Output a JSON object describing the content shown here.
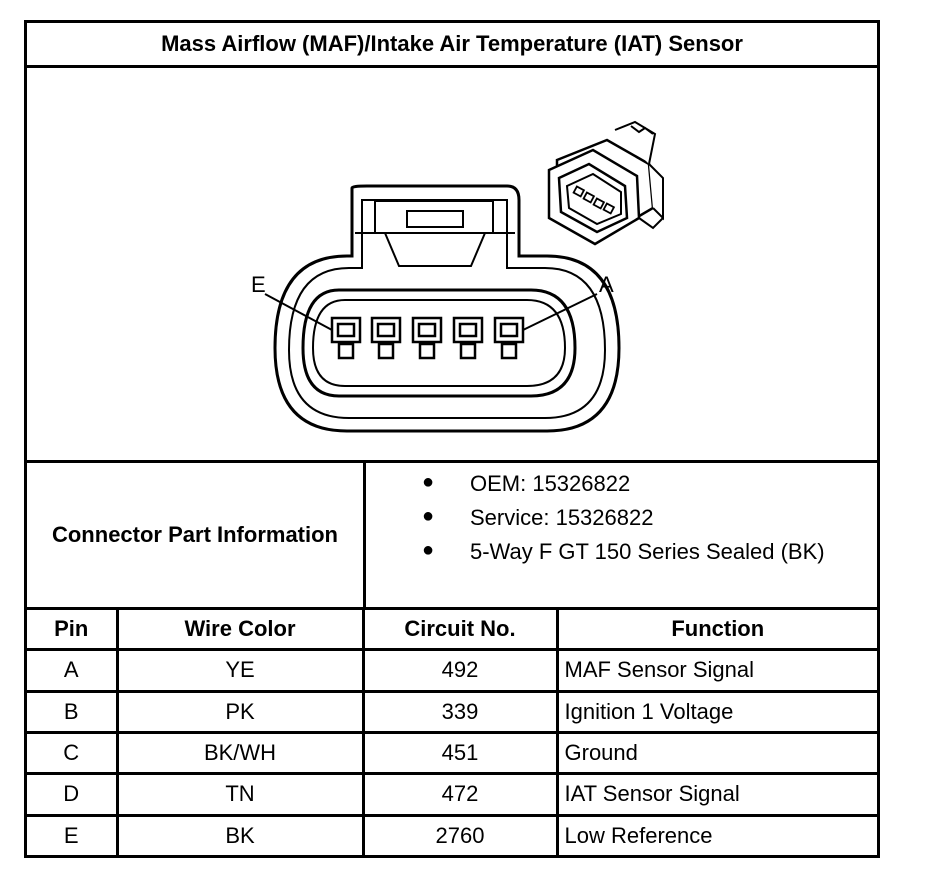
{
  "title": "Mass Airflow (MAF)/Intake Air Temperature (IAT) Sensor",
  "diagram": {
    "label_left": "E",
    "label_right": "A"
  },
  "connector_info": {
    "label": "Connector Part Information",
    "items": [
      "OEM: 15326822",
      "Service: 15326822",
      "5-Way F GT 150 Series Sealed (BK)"
    ]
  },
  "pin_table": {
    "headers": [
      "Pin",
      "Wire Color",
      "Circuit No.",
      "Function"
    ],
    "rows": [
      {
        "pin": "A",
        "wire_color": "YE",
        "circuit": "492",
        "function": "MAF Sensor Signal"
      },
      {
        "pin": "B",
        "wire_color": "PK",
        "circuit": "339",
        "function": "Ignition 1 Voltage"
      },
      {
        "pin": "C",
        "wire_color": "BK/WH",
        "circuit": "451",
        "function": "Ground"
      },
      {
        "pin": "D",
        "wire_color": "TN",
        "circuit": "472",
        "function": "IAT Sensor Signal"
      },
      {
        "pin": "E",
        "wire_color": "BK",
        "circuit": "2760",
        "function": "Low Reference"
      }
    ]
  }
}
